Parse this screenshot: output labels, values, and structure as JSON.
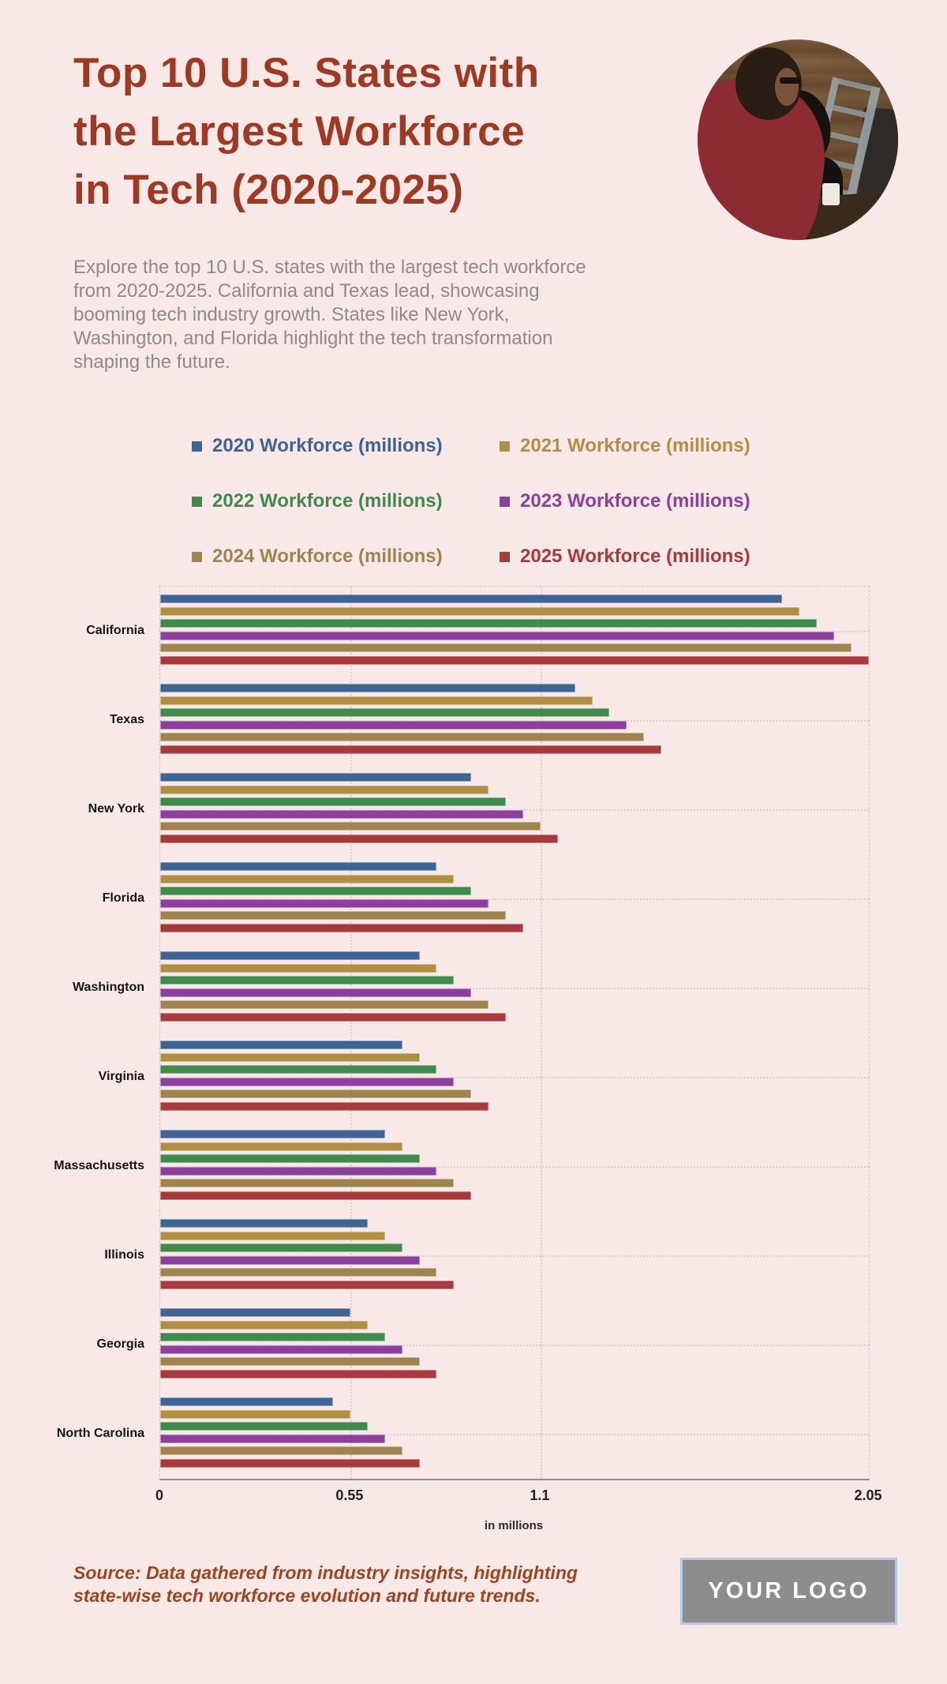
{
  "poster": {
    "background": "#f8e8e8",
    "accent_color": "#9e3a23"
  },
  "header": {
    "title_lines": [
      "Top 10 U.S. States with",
      "the Largest Workforce",
      "in Tech (2020-2025)"
    ],
    "title_color": "#9e3a23",
    "photo_alt": "two colleagues looking at a computer screen in a wood-paneled office"
  },
  "intro": {
    "lines": [
      "Explore the top 10 U.S. states with the largest tech workforce",
      "from 2020-2025. California and Texas lead, showcasing",
      "booming tech industry growth. States like New York,",
      "Washington, and Florida highlight the tech transformation",
      "shaping the future."
    ]
  },
  "chart_data": {
    "type": "bar",
    "orientation": "horizontal",
    "categories": [
      "California",
      "Texas",
      "New York",
      "Florida",
      "Washington",
      "Virginia",
      "Massachusetts",
      "Illinois",
      "Georgia",
      "North Carolina"
    ],
    "series": [
      {
        "name": "2020 Workforce (millions)",
        "color": "#3d6493",
        "values": [
          1.8,
          1.2,
          0.9,
          0.8,
          0.75,
          0.7,
          0.65,
          0.6,
          0.55,
          0.5
        ]
      },
      {
        "name": "2021 Workforce (millions)",
        "color": "#b08f45",
        "values": [
          1.85,
          1.25,
          0.95,
          0.85,
          0.8,
          0.75,
          0.7,
          0.65,
          0.6,
          0.55
        ]
      },
      {
        "name": "2022 Workforce (millions)",
        "color": "#3f8a4c",
        "values": [
          1.9,
          1.3,
          1.0,
          0.9,
          0.85,
          0.8,
          0.75,
          0.7,
          0.65,
          0.6
        ]
      },
      {
        "name": "2023 Workforce (millions)",
        "color": "#8c3f9c",
        "values": [
          1.95,
          1.35,
          1.05,
          0.95,
          0.9,
          0.85,
          0.8,
          0.75,
          0.7,
          0.65
        ]
      },
      {
        "name": "2024 Workforce (millions)",
        "color": "#a08450",
        "values": [
          2.0,
          1.4,
          1.1,
          1.0,
          0.95,
          0.9,
          0.85,
          0.8,
          0.75,
          0.7
        ]
      },
      {
        "name": "2025 Workforce (millions)",
        "color": "#a63a3c",
        "values": [
          2.05,
          1.45,
          1.15,
          1.05,
          1.0,
          0.95,
          0.9,
          0.85,
          0.8,
          0.75
        ]
      }
    ],
    "xlabel": "in millions",
    "xlim": [
      0,
      2.05
    ],
    "tick_values": [
      0,
      0.55,
      1.1,
      2.05
    ],
    "tick_labels": [
      "0",
      "0.55",
      "1.1",
      "2.05"
    ],
    "grid_values": [
      0.55,
      1.1
    ],
    "grid_style": "dotted",
    "legend_position": "top"
  },
  "footer": {
    "source_lines": [
      "Source: Data gathered from industry insights, highlighting",
      "state-wise tech workforce evolution and future trends."
    ],
    "logo_text": "YOUR LOGO"
  }
}
